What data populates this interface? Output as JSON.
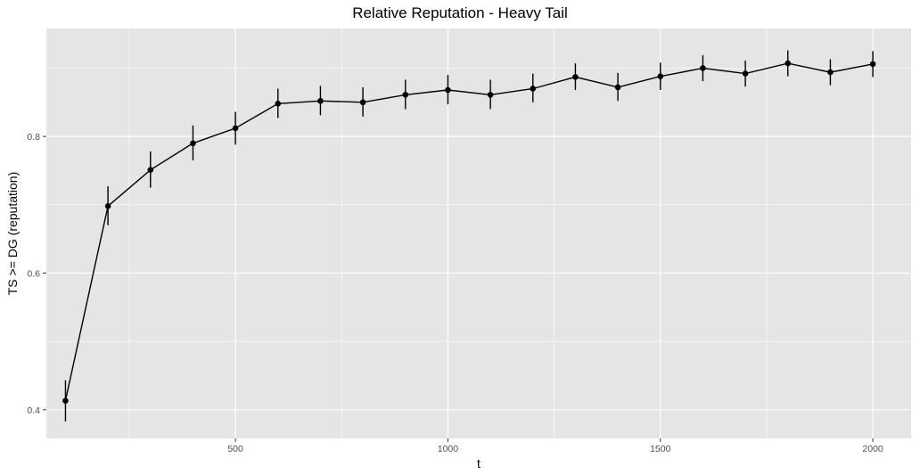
{
  "chart_data": {
    "type": "line",
    "title": "Relative Reputation - Heavy Tail",
    "xlabel": "t",
    "ylabel": "TS  >=  DG (reputation)",
    "xlim": [
      55,
      2090
    ],
    "ylim": [
      0.358,
      0.958
    ],
    "x_ticks": [
      500,
      1000,
      1500,
      2000
    ],
    "x_minor_ticks": [
      250,
      750,
      1250,
      1750
    ],
    "y_ticks": [
      0.4,
      0.6,
      0.8
    ],
    "y_minor_ticks": [
      0.5,
      0.7,
      0.9
    ],
    "x_tick_labels": [
      "500",
      "1000",
      "1500",
      "2000"
    ],
    "y_tick_labels": [
      "0.4",
      "0.6",
      "0.8"
    ],
    "grid": true,
    "panel_background": "#e5e5e5",
    "grid_color": "#ffffff",
    "series_color": "#000000",
    "series": [
      {
        "x": [
          100,
          200,
          300,
          400,
          500,
          600,
          700,
          800,
          900,
          1000,
          1100,
          1200,
          1300,
          1400,
          1500,
          1600,
          1700,
          1800,
          1900,
          2000
        ],
        "y": [
          0.413,
          0.698,
          0.751,
          0.79,
          0.812,
          0.848,
          0.852,
          0.85,
          0.861,
          0.868,
          0.861,
          0.87,
          0.887,
          0.872,
          0.888,
          0.9,
          0.892,
          0.907,
          0.894,
          0.906
        ],
        "y_low": [
          0.383,
          0.67,
          0.725,
          0.765,
          0.788,
          0.827,
          0.831,
          0.829,
          0.84,
          0.847,
          0.84,
          0.85,
          0.868,
          0.852,
          0.868,
          0.881,
          0.873,
          0.888,
          0.875,
          0.887
        ],
        "y_high": [
          0.443,
          0.727,
          0.778,
          0.816,
          0.836,
          0.87,
          0.874,
          0.872,
          0.883,
          0.89,
          0.883,
          0.892,
          0.907,
          0.893,
          0.908,
          0.919,
          0.911,
          0.926,
          0.913,
          0.925
        ]
      }
    ]
  }
}
